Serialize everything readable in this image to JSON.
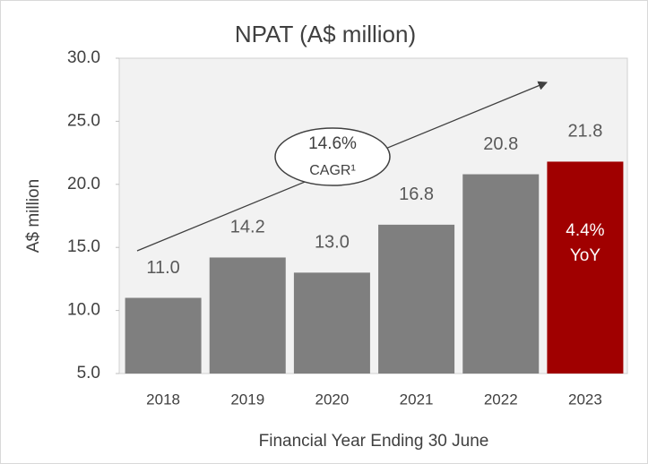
{
  "chart_data": {
    "type": "bar",
    "title": "NPAT (A$ million)",
    "y_label": "A$ million",
    "x_label": "Financial Year Ending 30 June",
    "categories": [
      "2018",
      "2019",
      "2020",
      "2021",
      "2022",
      "2023"
    ],
    "values": [
      11.0,
      14.2,
      13.0,
      16.8,
      20.8,
      21.8
    ],
    "value_labels": [
      "11.0",
      "14.2",
      "13.0",
      "16.8",
      "20.8",
      "21.8"
    ],
    "colors": [
      "#7f7f7f",
      "#7f7f7f",
      "#7f7f7f",
      "#7f7f7f",
      "#7f7f7f",
      "#a00000"
    ],
    "ylim": [
      5,
      30
    ],
    "yticks": [
      {
        "value": 5,
        "label": "5.0"
      },
      {
        "value": 10,
        "label": "10.0"
      },
      {
        "value": 15,
        "label": "15.0"
      },
      {
        "value": 20,
        "label": "20.0"
      },
      {
        "value": 25,
        "label": "25.0"
      },
      {
        "value": 30,
        "label": "30.0"
      }
    ],
    "grid": false,
    "annotations": {
      "cagr_value": "14.6%",
      "cagr_label": "CAGR¹",
      "yoy_value": "4.4%",
      "yoy_label": "YoY"
    }
  }
}
